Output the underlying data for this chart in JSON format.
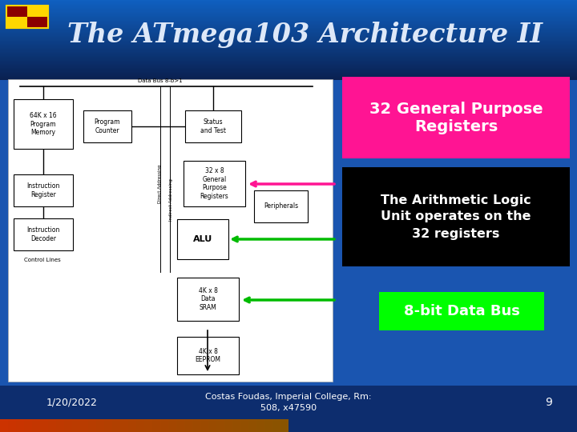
{
  "title": "The ATmega103 Architecture II",
  "title_color": "#dde8f8",
  "slide_bg": "#1a55b0",
  "footer_bg": "#0d2d6e",
  "footer_date": "1/20/2022",
  "footer_center": "Costas Foudas, Imperial College, Rm:\n508, x47590",
  "footer_num": "9",
  "box1_text": "32 General Purpose\nRegisters",
  "box1_bg": "#FF1493",
  "box2_text": "The Arithmetic Logic\nUnit operates on the\n32 registers",
  "box2_bg": "#000000",
  "box3_text": "8-bit Data Bus",
  "box3_bg": "#00FF00",
  "white": "#ffffff",
  "black": "#000000",
  "arrow_pink": "#FF1493",
  "arrow_green": "#00BB00"
}
